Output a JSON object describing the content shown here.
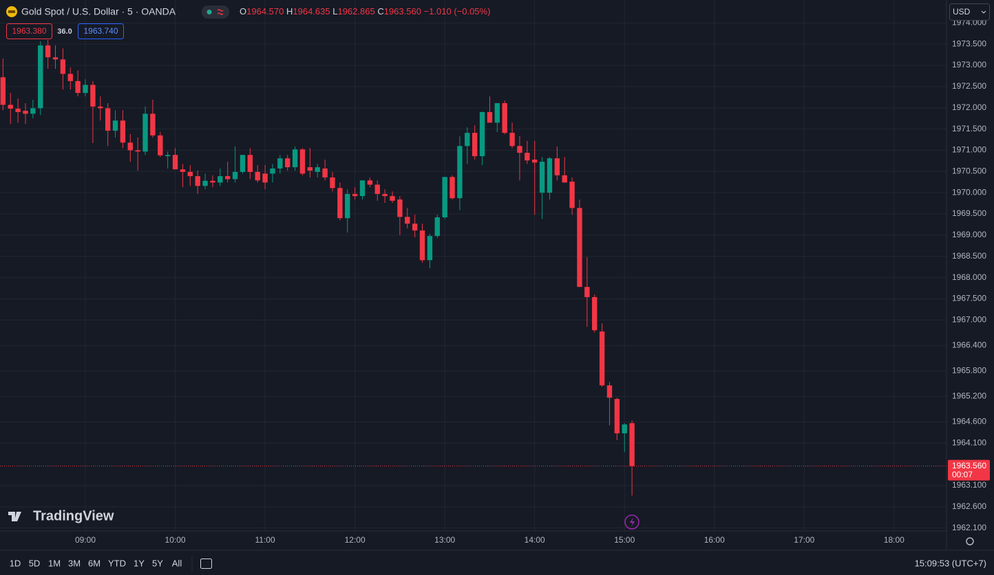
{
  "header": {
    "symbol": "Gold Spot / U.S. Dollar · 5 · OANDA",
    "ohlc": [
      {
        "key": "O",
        "text": "1964.570"
      },
      {
        "key": "H",
        "text": "1964.635"
      },
      {
        "key": "L",
        "text": "1962.865"
      },
      {
        "key": "C",
        "text": "1963.560"
      }
    ],
    "change": "−1.010 (−0.05%)",
    "bid": "1963.380",
    "spread": "36.0",
    "ask": "1963.740",
    "currency": "USD"
  },
  "brand": "TradingView",
  "toolbar": {
    "ranges": [
      "1D",
      "5D",
      "1M",
      "3M",
      "6M",
      "YTD",
      "1Y",
      "5Y",
      "All"
    ],
    "clock": "15:09:53 (UTC+7)"
  },
  "chart_data": {
    "type": "candlestick",
    "up_color": "#089981",
    "down_color": "#f23645",
    "grid": true,
    "last_price_label": "1963.560",
    "countdown": "00:07",
    "xlim": [
      "08:03",
      "18:35"
    ],
    "xticks": [
      "09:00",
      "10:00",
      "11:00",
      "12:00",
      "13:00",
      "14:00",
      "15:00",
      "16:00",
      "17:00",
      "18:00"
    ],
    "ylim": [
      1962.03,
      1974.54
    ],
    "yticks": [
      {
        "value": 1974,
        "label": "1974.000"
      },
      {
        "value": 1973.5,
        "label": "1973.500"
      },
      {
        "value": 1973,
        "label": "1973.000"
      },
      {
        "value": 1972.5,
        "label": "1972.500"
      },
      {
        "value": 1972,
        "label": "1972.000"
      },
      {
        "value": 1971.5,
        "label": "1971.500"
      },
      {
        "value": 1971,
        "label": "1971.000"
      },
      {
        "value": 1970.5,
        "label": "1970.500"
      },
      {
        "value": 1970,
        "label": "1970.000"
      },
      {
        "value": 1969.5,
        "label": "1969.500"
      },
      {
        "value": 1969,
        "label": "1969.000"
      },
      {
        "value": 1968.5,
        "label": "1968.500"
      },
      {
        "value": 1968,
        "label": "1968.000"
      },
      {
        "value": 1967.5,
        "label": "1967.500"
      },
      {
        "value": 1967,
        "label": "1967.000"
      },
      {
        "value": 1966.4,
        "label": "1966.400"
      },
      {
        "value": 1965.8,
        "label": "1965.800"
      },
      {
        "value": 1965.2,
        "label": "1965.200"
      },
      {
        "value": 1964.6,
        "label": "1964.600"
      },
      {
        "value": 1964.1,
        "label": "1964.100"
      },
      {
        "value": 1963.1,
        "label": "1963.100"
      },
      {
        "value": 1962.6,
        "label": "1962.600"
      },
      {
        "value": 1962.1,
        "label": "1962.100"
      }
    ],
    "x": [
      "08:05",
      "08:10",
      "08:15",
      "08:20",
      "08:25",
      "08:30",
      "08:35",
      "08:40",
      "08:45",
      "08:50",
      "08:55",
      "09:00",
      "09:05",
      "09:10",
      "09:15",
      "09:20",
      "09:25",
      "09:30",
      "09:35",
      "09:40",
      "09:45",
      "09:50",
      "09:55",
      "10:00",
      "10:05",
      "10:10",
      "10:15",
      "10:20",
      "10:25",
      "10:30",
      "10:35",
      "10:40",
      "10:45",
      "10:50",
      "10:55",
      "11:00",
      "11:05",
      "11:10",
      "11:15",
      "11:20",
      "11:25",
      "11:30",
      "11:35",
      "11:40",
      "11:45",
      "11:50",
      "11:55",
      "12:00",
      "12:05",
      "12:10",
      "12:15",
      "12:20",
      "12:25",
      "12:30",
      "12:35",
      "12:40",
      "12:45",
      "12:50",
      "12:55",
      "13:00",
      "13:05",
      "13:10",
      "13:15",
      "13:20",
      "13:25",
      "13:30",
      "13:35",
      "13:40",
      "13:45",
      "13:50",
      "13:55",
      "14:00",
      "14:05",
      "14:10",
      "14:15",
      "14:20",
      "14:25",
      "14:30",
      "14:35",
      "14:40",
      "14:45",
      "14:50",
      "14:55",
      "15:00",
      "15:05"
    ],
    "open": [
      1972.72,
      1972.07,
      1971.98,
      1971.93,
      1971.86,
      1971.99,
      1973.47,
      1973.19,
      1973.14,
      1972.8,
      1972.63,
      1972.35,
      1972.54,
      1972.03,
      1971.99,
      1971.46,
      1971.7,
      1971.18,
      1971.0,
      1970.97,
      1971.86,
      1971.35,
      1970.86,
      1970.89,
      1970.55,
      1970.49,
      1970.39,
      1970.16,
      1970.28,
      1970.24,
      1970.39,
      1970.32,
      1970.49,
      1970.89,
      1970.49,
      1970.45,
      1970.45,
      1970.57,
      1970.81,
      1970.6,
      1971.02,
      1970.6,
      1970.49,
      1970.57,
      1970.36,
      1970.11,
      1969.4,
      1969.97,
      1969.92,
      1970.29,
      1970.19,
      1969.97,
      1969.92,
      1969.84,
      1969.43,
      1969.27,
      1969.11,
      1968.41,
      1968.98,
      1969.42,
      1970.37,
      1969.87,
      1971.1,
      1971.41,
      1970.86,
      1971.9,
      1971.65,
      1972.11,
      1971.41,
      1971.1,
      1970.94,
      1970.78,
      1970.0,
      1970.0,
      1970.81,
      1970.41,
      1970.26,
      1969.64,
      1967.78,
      1967.54,
      1966.73,
      1965.46,
      1965.14,
      1964.33,
      1964.57
    ],
    "high": [
      1973.16,
      1972.35,
      1972.22,
      1972.11,
      1972.19,
      1973.57,
      1973.6,
      1973.47,
      1973.4,
      1972.95,
      1972.88,
      1972.67,
      1972.63,
      1972.27,
      1972.11,
      1971.94,
      1971.94,
      1971.38,
      1971.3,
      1972.03,
      1972.19,
      1971.43,
      1970.97,
      1971.05,
      1970.68,
      1970.65,
      1970.52,
      1970.45,
      1970.41,
      1970.57,
      1970.73,
      1971.09,
      1970.89,
      1971.05,
      1970.65,
      1970.65,
      1970.68,
      1970.89,
      1970.89,
      1971.09,
      1971.05,
      1971.05,
      1970.68,
      1970.78,
      1970.49,
      1970.24,
      1970.08,
      1970.13,
      1970.29,
      1970.36,
      1970.29,
      1970.08,
      1970.03,
      1969.92,
      1969.64,
      1969.48,
      1969.27,
      1969.03,
      1969.48,
      1970.37,
      1970.41,
      1971.33,
      1971.54,
      1971.59,
      1971.91,
      1972.27,
      1972.11,
      1972.17,
      1971.65,
      1971.33,
      1971.22,
      1971.22,
      1970.84,
      1970.84,
      1971.09,
      1970.84,
      1970.36,
      1969.84,
      1968.48,
      1967.6,
      1966.92,
      1965.54,
      1965.17,
      1964.57,
      1964.635
    ],
    "low": [
      1971.94,
      1971.62,
      1971.65,
      1971.62,
      1971.75,
      1971.83,
      1972.92,
      1972.92,
      1972.43,
      1972.43,
      1972.27,
      1972.27,
      1971.17,
      1971.7,
      1971.1,
      1971.3,
      1971.05,
      1970.73,
      1970.52,
      1970.89,
      1971.3,
      1970.84,
      1970.57,
      1970.55,
      1970.13,
      1970.16,
      1969.97,
      1970.08,
      1970.13,
      1970.16,
      1970.24,
      1970.24,
      1970.45,
      1970.32,
      1970.24,
      1970.08,
      1970.24,
      1970.45,
      1970.52,
      1970.52,
      1970.41,
      1970.36,
      1970.36,
      1970.29,
      1970.03,
      1969.35,
      1969.06,
      1969.84,
      1969.84,
      1970.13,
      1969.81,
      1969.76,
      1969.76,
      1969.0,
      1969.16,
      1968.95,
      1968.35,
      1968.22,
      1968.93,
      1969.38,
      1969.84,
      1969.59,
      1970.68,
      1970.78,
      1970.65,
      1971.65,
      1971.43,
      1971.38,
      1971.05,
      1970.29,
      1970.68,
      1969.48,
      1969.38,
      1969.84,
      1970.29,
      1970.24,
      1969.48,
      1967.78,
      1966.84,
      1966.71,
      1965.43,
      1964.52,
      1964.17,
      1963.89,
      1962.865
    ],
    "close": [
      1972.07,
      1971.98,
      1971.9,
      1971.86,
      1971.99,
      1973.47,
      1973.19,
      1973.14,
      1972.8,
      1972.63,
      1972.35,
      1972.54,
      1972.03,
      1971.99,
      1971.46,
      1971.7,
      1971.18,
      1971.0,
      1970.97,
      1971.86,
      1971.35,
      1970.88,
      1970.89,
      1970.55,
      1970.49,
      1970.39,
      1970.16,
      1970.28,
      1970.24,
      1970.39,
      1970.32,
      1970.49,
      1970.89,
      1970.49,
      1970.29,
      1970.24,
      1970.57,
      1970.81,
      1970.6,
      1971.02,
      1970.45,
      1970.52,
      1970.6,
      1970.36,
      1970.11,
      1969.4,
      1969.97,
      1969.92,
      1970.29,
      1970.19,
      1969.97,
      1969.92,
      1969.81,
      1969.43,
      1969.27,
      1969.11,
      1968.41,
      1968.98,
      1969.42,
      1970.37,
      1969.87,
      1971.1,
      1971.41,
      1970.86,
      1971.9,
      1971.65,
      1972.11,
      1971.41,
      1971.1,
      1970.94,
      1970.76,
      1970.71,
      1970.73,
      1970.81,
      1970.41,
      1970.24,
      1969.64,
      1967.78,
      1967.54,
      1966.76,
      1965.46,
      1965.17,
      1964.33,
      1964.54,
      1963.56
    ]
  }
}
